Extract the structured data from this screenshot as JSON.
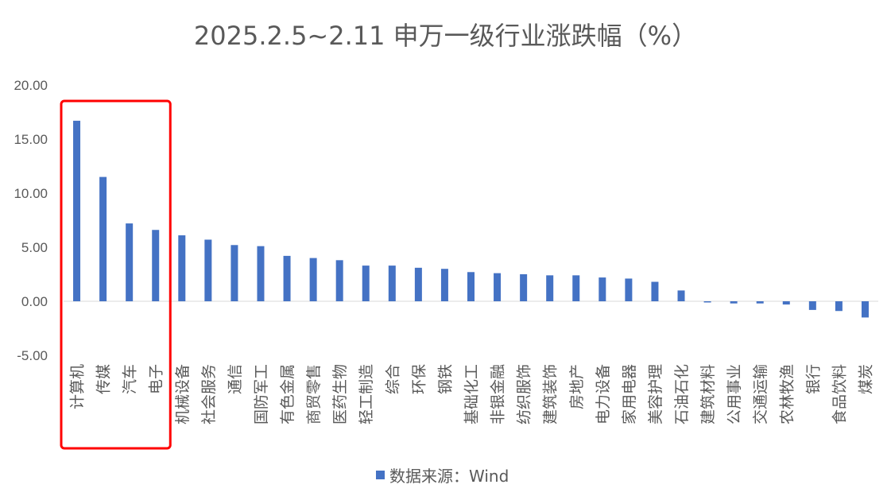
{
  "chart_data": {
    "type": "bar",
    "title": "2025.2.5~2.11 申万一级行业涨跌幅（%）",
    "xlabel": "",
    "ylabel": "",
    "ylim": [
      -5,
      20
    ],
    "yticks": [
      "20.00",
      "15.00",
      "10.00",
      "5.00",
      "0.00",
      "-5.00"
    ],
    "grid": false,
    "legend_position": "bottom",
    "bar_color": "#4472C4",
    "highlight_color": "#FF0000",
    "highlight_categories": [
      "计算机",
      "传媒",
      "汽车",
      "电子"
    ],
    "categories": [
      "计算机",
      "传媒",
      "汽车",
      "电子",
      "机械设备",
      "社会服务",
      "通信",
      "国防军工",
      "有色金属",
      "商贸零售",
      "医药生物",
      "轻工制造",
      "综合",
      "环保",
      "钢铁",
      "基础化工",
      "非银金融",
      "纺织服饰",
      "建筑装饰",
      "房地产",
      "电力设备",
      "家用电器",
      "美容护理",
      "石油石化",
      "建筑材料",
      "公用事业",
      "交通运输",
      "农林牧渔",
      "银行",
      "食品饮料",
      "煤炭"
    ],
    "series": [
      {
        "name": "数据来源：Wind",
        "values": [
          16.7,
          11.5,
          7.2,
          6.6,
          6.1,
          5.7,
          5.2,
          5.1,
          4.2,
          4.0,
          3.8,
          3.3,
          3.3,
          3.1,
          3.0,
          2.7,
          2.6,
          2.5,
          2.4,
          2.4,
          2.2,
          2.1,
          1.8,
          1.0,
          -0.05,
          -0.2,
          -0.2,
          -0.3,
          -0.8,
          -0.9,
          -1.5
        ]
      }
    ]
  }
}
